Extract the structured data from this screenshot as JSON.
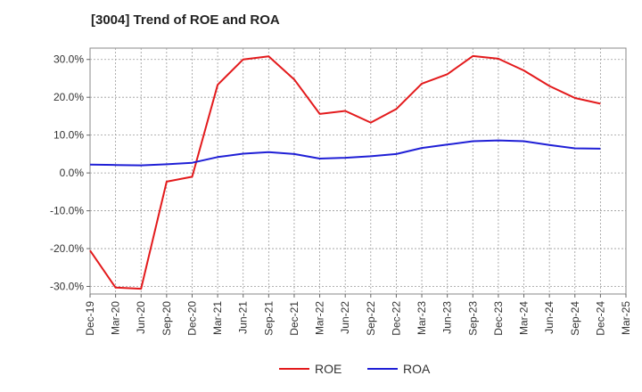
{
  "chart_data": {
    "type": "line",
    "title": "[3004]  Trend of ROE and ROA",
    "xlabel": "",
    "ylabel": "",
    "ylim": [
      -32,
      33
    ],
    "yticks": [
      -30,
      -20,
      -10,
      0,
      10,
      20,
      30
    ],
    "ytick_labels": [
      "-30.0%",
      "-20.0%",
      "-10.0%",
      "0.0%",
      "10.0%",
      "20.0%",
      "30.0%"
    ],
    "categories": [
      "Dec-19",
      "Mar-20",
      "Jun-20",
      "Sep-20",
      "Dec-20",
      "Mar-21",
      "Jun-21",
      "Sep-21",
      "Dec-21",
      "Mar-22",
      "Jun-22",
      "Sep-22",
      "Dec-22",
      "Mar-23",
      "Jun-23",
      "Sep-23",
      "Dec-23",
      "Mar-24",
      "Jun-24",
      "Sep-24",
      "Dec-24",
      "Mar-25"
    ],
    "grid": true,
    "legend_position": "bottom-center",
    "series": [
      {
        "name": "ROE",
        "color": "#e31a1c",
        "values": [
          -20.5,
          -30.3,
          -30.6,
          -2.3,
          -1.0,
          23.3,
          30.0,
          30.8,
          24.7,
          15.6,
          16.4,
          13.3,
          16.9,
          23.6,
          26.1,
          30.9,
          30.2,
          27.1,
          23.0,
          19.8,
          18.3,
          null
        ]
      },
      {
        "name": "ROA",
        "color": "#1f1fd6",
        "values": [
          2.2,
          2.1,
          2.0,
          2.3,
          2.7,
          4.2,
          5.1,
          5.5,
          5.0,
          3.8,
          4.0,
          4.4,
          5.0,
          6.6,
          7.5,
          8.4,
          8.6,
          8.4,
          7.4,
          6.5,
          6.4,
          null
        ]
      }
    ]
  }
}
